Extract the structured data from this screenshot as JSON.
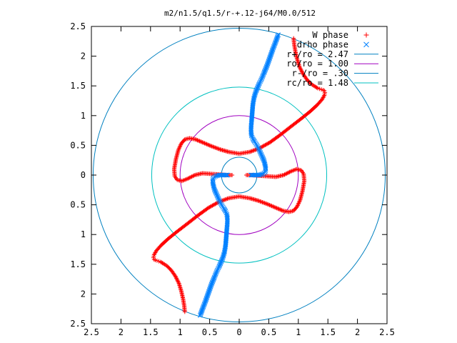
{
  "chart_data": {
    "type": "scatter",
    "title": "m2/n1.5/q1.5/r-+.12-j64/M0.0/512",
    "xlim": [
      -2.5,
      2.5
    ],
    "ylim": [
      -2.5,
      2.5
    ],
    "x_ticks": [
      -2.5,
      -2,
      -1.5,
      -1,
      -0.5,
      0,
      0.5,
      1,
      1.5,
      2,
      2.5
    ],
    "y_ticks": [
      -2.5,
      -2,
      -1.5,
      -1,
      -0.5,
      0,
      0.5,
      1,
      1.5,
      2,
      2.5
    ],
    "x_tick_labels": [
      "2.5",
      "2",
      "1.5",
      "1",
      "0.5",
      "0",
      "0.5",
      "1",
      "1.5",
      "2",
      "2.5"
    ],
    "y_tick_labels": [
      "2.5",
      "2",
      "1.5",
      "1",
      "0.5",
      "0",
      "0.5",
      "1",
      "1.5",
      "2",
      "2.5"
    ],
    "legend_position": "top-right",
    "grid": false,
    "series": [
      {
        "name": "W phase",
        "marker": "+",
        "color": "#ff0000",
        "x": [
          0.92,
          0.93,
          0.95,
          0.98,
          1.02,
          1.08,
          1.15,
          1.22,
          1.28,
          1.33,
          1.36,
          1.39,
          1.42,
          1.44,
          1.45,
          1.44,
          1.4,
          1.32,
          1.2,
          1.05,
          0.88,
          0.7,
          0.52,
          0.34,
          0.18,
          0.06,
          0.0,
          -0.06,
          -0.18,
          -0.32,
          -0.48,
          -0.62,
          -0.74,
          -0.84,
          -0.92,
          -0.98,
          -1.03,
          -1.07,
          -1.1,
          -1.09,
          -1.05,
          -0.97,
          -0.87,
          -0.75,
          -0.62,
          -0.48,
          -0.34,
          -0.22,
          -0.12,
          -0.92,
          -0.93,
          -0.95,
          -0.98,
          -1.02,
          -1.08,
          -1.15,
          -1.22,
          -1.28,
          -1.33,
          -1.36,
          -1.39,
          -1.42,
          -1.44,
          -1.45,
          -1.44,
          -1.4,
          -1.32,
          -1.2,
          -1.05,
          -0.88,
          -0.7,
          -0.52,
          -0.34,
          -0.18,
          -0.06,
          0.0,
          0.06,
          0.18,
          0.32,
          0.48,
          0.62,
          0.74,
          0.84,
          0.92,
          0.98,
          1.03,
          1.07,
          1.1,
          1.09,
          1.05,
          0.97,
          0.87,
          0.75,
          0.62,
          0.48,
          0.34,
          0.22,
          0.12
        ],
        "y": [
          2.3,
          2.2,
          2.08,
          1.95,
          1.82,
          1.7,
          1.6,
          1.53,
          1.49,
          1.46,
          1.45,
          1.44,
          1.43,
          1.42,
          1.39,
          1.34,
          1.27,
          1.18,
          1.07,
          0.95,
          0.82,
          0.68,
          0.55,
          0.45,
          0.39,
          0.37,
          0.36,
          0.37,
          0.39,
          0.43,
          0.49,
          0.55,
          0.6,
          0.62,
          0.6,
          0.53,
          0.42,
          0.27,
          0.1,
          -0.02,
          -0.08,
          -0.1,
          -0.06,
          0.0,
          0.03,
          0.02,
          0.01,
          0.0,
          0.0,
          -2.3,
          -2.2,
          -2.08,
          -1.95,
          -1.82,
          -1.7,
          -1.6,
          -1.53,
          -1.49,
          -1.46,
          -1.45,
          -1.44,
          -1.43,
          -1.42,
          -1.39,
          -1.34,
          -1.27,
          -1.18,
          -1.07,
          -0.95,
          -0.82,
          -0.68,
          -0.55,
          -0.45,
          -0.39,
          -0.37,
          -0.36,
          -0.37,
          -0.39,
          -0.43,
          -0.49,
          -0.55,
          -0.6,
          -0.62,
          -0.6,
          -0.53,
          -0.42,
          -0.27,
          -0.1,
          0.02,
          0.08,
          0.1,
          0.06,
          0.0,
          -0.03,
          -0.02,
          -0.01,
          0.0,
          0.0
        ]
      },
      {
        "name": "drho phase",
        "marker": "x",
        "color": "#0080ff",
        "x": [
          0.66,
          0.62,
          0.57,
          0.52,
          0.47,
          0.42,
          0.38,
          0.34,
          0.31,
          0.28,
          0.25,
          0.23,
          0.22,
          0.21,
          0.2,
          0.2,
          0.21,
          0.23,
          0.26,
          0.3,
          0.34,
          0.38,
          0.42,
          0.44,
          0.45,
          0.44,
          0.4,
          0.34,
          0.28,
          0.24,
          0.22,
          0.21,
          0.2,
          -0.66,
          -0.62,
          -0.57,
          -0.52,
          -0.47,
          -0.42,
          -0.38,
          -0.34,
          -0.31,
          -0.28,
          -0.25,
          -0.23,
          -0.22,
          -0.21,
          -0.2,
          -0.2,
          -0.21,
          -0.23,
          -0.26,
          -0.3,
          -0.34,
          -0.38,
          -0.42,
          -0.44,
          -0.45,
          -0.44,
          -0.4,
          -0.34,
          -0.28,
          -0.24,
          -0.22,
          -0.21,
          -0.2
        ],
        "y": [
          2.36,
          2.25,
          2.12,
          1.98,
          1.84,
          1.72,
          1.62,
          1.54,
          1.47,
          1.4,
          1.3,
          1.18,
          1.05,
          0.92,
          0.8,
          0.72,
          0.66,
          0.61,
          0.56,
          0.5,
          0.42,
          0.33,
          0.24,
          0.16,
          0.1,
          0.05,
          0.02,
          0.0,
          0.0,
          0.0,
          0.0,
          0.0,
          0.0,
          -2.36,
          -2.25,
          -2.12,
          -1.98,
          -1.84,
          -1.72,
          -1.62,
          -1.54,
          -1.47,
          -1.4,
          -1.3,
          -1.18,
          -1.05,
          -0.92,
          -0.8,
          -0.72,
          -0.66,
          -0.61,
          -0.56,
          -0.5,
          -0.42,
          -0.33,
          -0.24,
          -0.16,
          -0.1,
          -0.05,
          -0.02,
          0.0,
          0.0,
          0.0,
          0.0,
          0.0,
          0.0
        ]
      },
      {
        "name": "r+/ro = 2.47",
        "type": "circle",
        "radius": 2.47,
        "color": "#0080c0"
      },
      {
        "name": "ro/ro = 1.00",
        "type": "circle",
        "radius": 1.0,
        "color": "#a000c0"
      },
      {
        "name": "r-/ro = .30",
        "type": "circle",
        "radius": 0.3,
        "color": "#0080c0"
      },
      {
        "name": "rc/ro = 1.48",
        "type": "circle",
        "radius": 1.48,
        "color": "#00c0c0"
      }
    ]
  }
}
